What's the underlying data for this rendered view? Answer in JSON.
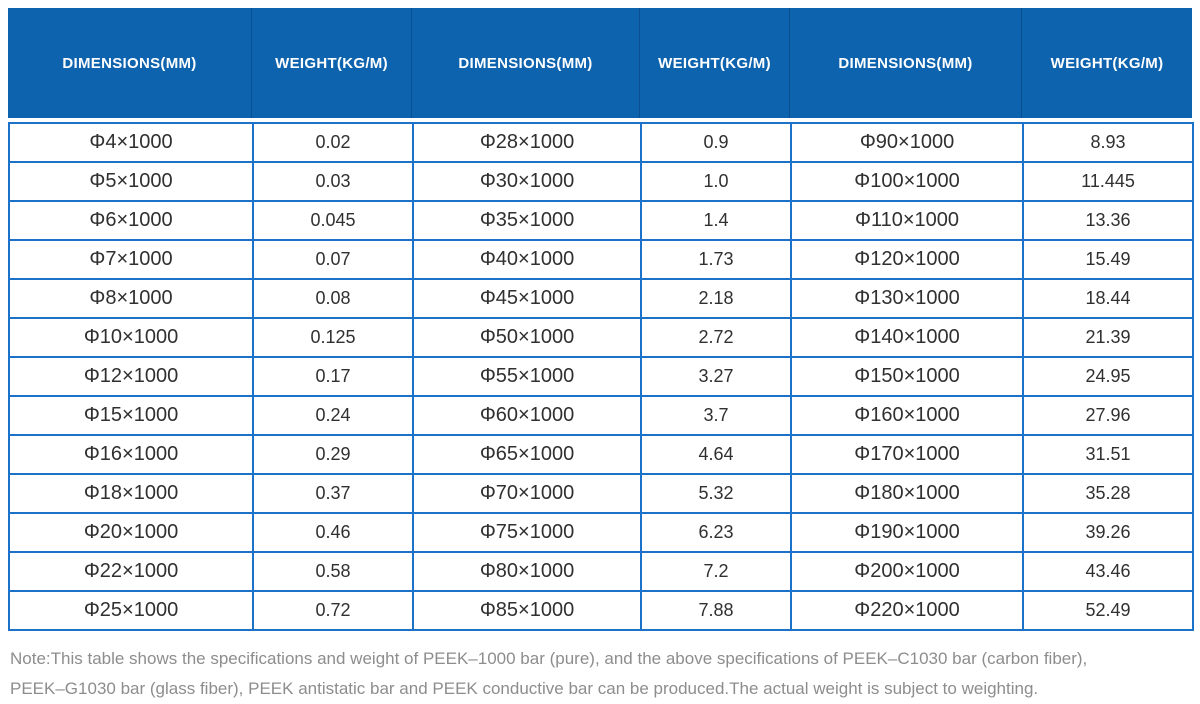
{
  "header": {
    "columns": [
      "DIMENSIONS(MM)",
      "WEIGHT(KG/M)",
      "DIMENSIONS(MM)",
      "WEIGHT(KG/M)",
      "DIMENSIONS(MM)",
      "WEIGHT(KG/M)"
    ]
  },
  "table": {
    "rows": [
      [
        "Φ4×1000",
        "0.02",
        "Φ28×1000",
        "0.9",
        "Φ90×1000",
        "8.93"
      ],
      [
        "Φ5×1000",
        "0.03",
        "Φ30×1000",
        "1.0",
        "Φ100×1000",
        "11.445"
      ],
      [
        "Φ6×1000",
        "0.045",
        "Φ35×1000",
        "1.4",
        "Φ110×1000",
        "13.36"
      ],
      [
        "Φ7×1000",
        "0.07",
        "Φ40×1000",
        "1.73",
        "Φ120×1000",
        "15.49"
      ],
      [
        "Φ8×1000",
        "0.08",
        "Φ45×1000",
        "2.18",
        "Φ130×1000",
        "18.44"
      ],
      [
        "Φ10×1000",
        "0.125",
        "Φ50×1000",
        "2.72",
        "Φ140×1000",
        "21.39"
      ],
      [
        "Φ12×1000",
        "0.17",
        "Φ55×1000",
        "3.27",
        "Φ150×1000",
        "24.95"
      ],
      [
        "Φ15×1000",
        "0.24",
        "Φ60×1000",
        "3.7",
        "Φ160×1000",
        "27.96"
      ],
      [
        "Φ16×1000",
        "0.29",
        "Φ65×1000",
        "4.64",
        "Φ170×1000",
        "31.51"
      ],
      [
        "Φ18×1000",
        "0.37",
        "Φ70×1000",
        "5.32",
        "Φ180×1000",
        "35.28"
      ],
      [
        "Φ20×1000",
        "0.46",
        "Φ75×1000",
        "6.23",
        "Φ190×1000",
        "39.26"
      ],
      [
        "Φ22×1000",
        "0.58",
        "Φ80×1000",
        "7.2",
        "Φ200×1000",
        "43.46"
      ],
      [
        "Φ25×1000",
        "0.72",
        "Φ85×1000",
        "7.88",
        "Φ220×1000",
        "52.49"
      ]
    ]
  },
  "note": {
    "lines": [
      "Note:This table shows the specifications and weight of PEEK–1000 bar (pure), and the above specifications of PEEK–C1030 bar (carbon fiber),",
      "PEEK–G1030 bar (glass fiber), PEEK antistatic bar and PEEK conductive bar can be produced.The actual weight is subject to weighting."
    ]
  },
  "colors": {
    "header_bg": "#0E63AE",
    "header_divider": "#0A4F92",
    "grid_border": "#1C72C9",
    "body_text": "#303030",
    "note_text": "#8D8D8D"
  }
}
